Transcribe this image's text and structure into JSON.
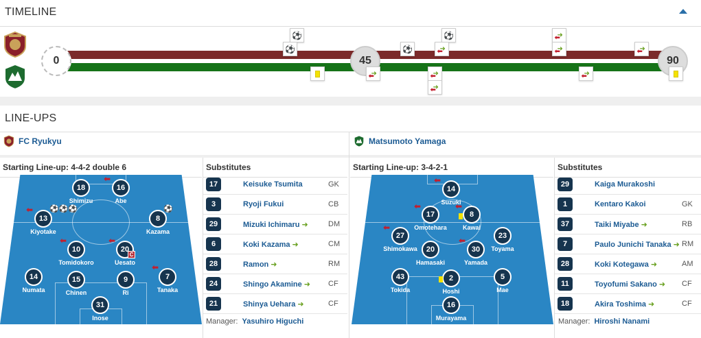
{
  "timeline": {
    "title": "TIMELINE",
    "home_color": "#7b2a2a",
    "away_color": "#167318",
    "minute_start": "0",
    "minute_half": "45",
    "minute_end": "90"
  },
  "lineups": {
    "title": "LINE-UPS",
    "home": {
      "name": "FC Ryukyu",
      "starting_label": "Starting Line-up: 4-4-2 double 6",
      "subs_label": "Substitutes",
      "manager_label": "Manager:",
      "manager": "Yasuhiro Higuchi",
      "players": [
        {
          "num": "18",
          "name": "Shimizu"
        },
        {
          "num": "16",
          "name": "Abe"
        },
        {
          "num": "13",
          "name": "Kiyotake"
        },
        {
          "num": "8",
          "name": "Kazama"
        },
        {
          "num": "10",
          "name": "Tomidokoro"
        },
        {
          "num": "20",
          "name": "Uesato"
        },
        {
          "num": "14",
          "name": "Numata"
        },
        {
          "num": "15",
          "name": "Chinen"
        },
        {
          "num": "9",
          "name": "Ri"
        },
        {
          "num": "7",
          "name": "Tanaka"
        },
        {
          "num": "31",
          "name": "Inose"
        }
      ],
      "captain_mark": "C",
      "substitutes": [
        {
          "num": "17",
          "name": "Keisuke Tsumita",
          "pos": "GK",
          "in": false
        },
        {
          "num": "3",
          "name": "Ryoji Fukui",
          "pos": "CB",
          "in": false
        },
        {
          "num": "29",
          "name": "Mizuki Ichimaru",
          "pos": "DM",
          "in": true
        },
        {
          "num": "6",
          "name": "Koki Kazama",
          "pos": "CM",
          "in": true
        },
        {
          "num": "28",
          "name": "Ramon",
          "pos": "RM",
          "in": true
        },
        {
          "num": "24",
          "name": "Shingo Akamine",
          "pos": "CF",
          "in": true
        },
        {
          "num": "21",
          "name": "Shinya Uehara",
          "pos": "CF",
          "in": true
        }
      ]
    },
    "away": {
      "name": "Matsumoto Yamaga",
      "starting_label": "Starting Line-up: 3-4-2-1",
      "subs_label": "Substitutes",
      "manager_label": "Manager:",
      "manager": "Hiroshi Nanami",
      "players": [
        {
          "num": "14",
          "name": "Suzuki"
        },
        {
          "num": "17",
          "name": "Omotehara"
        },
        {
          "num": "8",
          "name": "Kawai"
        },
        {
          "num": "27",
          "name": "Shimokawa"
        },
        {
          "num": "20",
          "name": "Hamasaki"
        },
        {
          "num": "30",
          "name": "Yamada"
        },
        {
          "num": "23",
          "name": "Toyama"
        },
        {
          "num": "43",
          "name": "Tokida"
        },
        {
          "num": "2",
          "name": "Hoshi"
        },
        {
          "num": "5",
          "name": "Mae"
        },
        {
          "num": "16",
          "name": "Murayama"
        }
      ],
      "substitutes": [
        {
          "num": "29",
          "name": "Kaiga Murakoshi",
          "pos": "",
          "in": false
        },
        {
          "num": "1",
          "name": "Kentaro Kakoi",
          "pos": "GK",
          "in": false
        },
        {
          "num": "37",
          "name": "Taiki Miyabe",
          "pos": "RB",
          "in": true
        },
        {
          "num": "7",
          "name": "Paulo Junichi Tanaka",
          "pos": "RM",
          "in": true
        },
        {
          "num": "28",
          "name": "Koki Kotegawa",
          "pos": "AM",
          "in": true
        },
        {
          "num": "11",
          "name": "Toyofumi Sakano",
          "pos": "CF",
          "in": true
        },
        {
          "num": "18",
          "name": "Akira Toshima",
          "pos": "CF",
          "in": true
        }
      ]
    }
  },
  "icons": {
    "collapse": "chevron-up-icon",
    "goal": "football-icon",
    "card": "yellow-card-icon",
    "sub": "substitution-icon"
  }
}
